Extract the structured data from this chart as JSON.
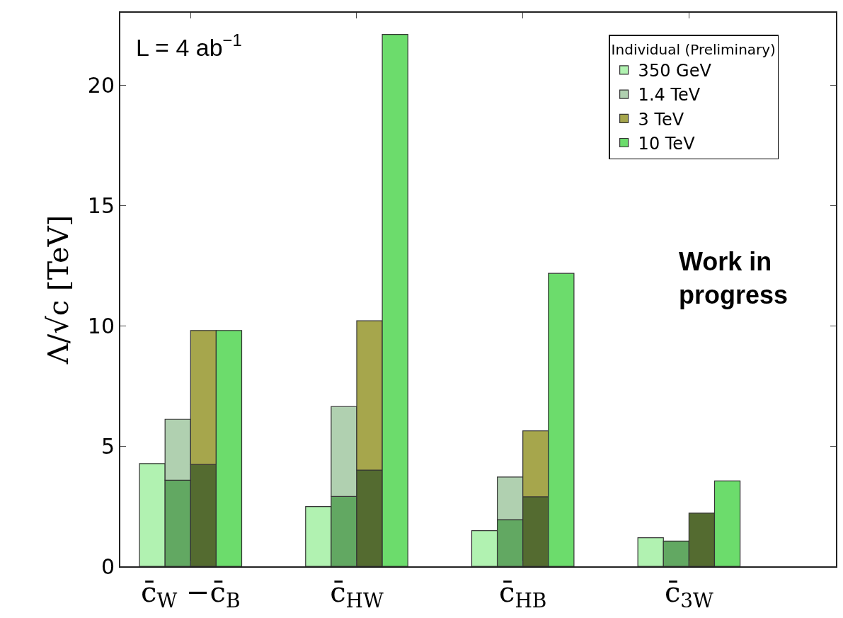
{
  "chart_data": {
    "type": "bar",
    "stacked": true,
    "ylabel": "Λ/√c [TeV]",
    "legend_title": "Individual (Preliminary)",
    "categories": [
      null,
      null,
      null,
      null,
      null,
      "c̄$_{W}$ −c̄$_{B}$",
      null,
      null,
      null,
      null,
      null,
      null,
      null,
      null,
      null,
      null,
      null,
      null,
      "c̄$_{HW}$",
      null,
      null,
      null,
      null,
      null,
      null,
      null,
      null,
      null,
      null,
      null,
      null,
      "c̄$_{HB}$",
      null,
      null,
      null,
      null,
      null,
      null,
      null,
      null,
      null,
      null,
      null,
      null,
      "c̄$_{3W}$",
      null,
      null,
      null,
      null,
      null,
      null,
      null,
      null,
      null,
      null,
      null
    ],
    "series": [
      {
        "name": "350 GeV",
        "color": "#b1f2b1",
        "values": [
          null,
          null,
          4.27,
          null,
          null,
          null,
          null,
          null,
          null,
          null,
          null,
          null,
          null,
          null,
          null,
          2.48,
          null,
          null,
          null,
          null,
          null,
          null,
          null,
          null,
          null,
          null,
          null,
          null,
          1.48,
          null,
          null,
          null,
          null,
          null,
          null,
          null,
          null,
          null,
          null,
          null,
          null,
          1.19,
          null,
          null,
          null,
          null,
          null,
          null,
          null,
          null,
          null,
          null,
          null,
          null,
          null,
          null
        ]
      },
      {
        "color": "#62a862",
        "values": [
          null,
          null,
          null,
          null,
          3.58,
          null,
          null,
          null,
          null,
          null,
          null,
          null,
          null,
          null,
          null,
          null,
          null,
          2.9,
          null,
          null,
          null,
          null,
          null,
          null,
          null,
          null,
          null,
          null,
          null,
          null,
          1.94,
          null,
          null,
          null,
          null,
          null,
          null,
          null,
          null,
          null,
          null,
          null,
          null,
          1.05,
          null,
          null,
          null,
          null,
          null,
          null,
          null,
          null,
          null,
          null,
          null,
          null
        ]
      },
      {
        "name": "1.4 TeV",
        "color": "#b0d0b0",
        "values": [
          null,
          null,
          null,
          null,
          2.53,
          null,
          null,
          null,
          null,
          null,
          null,
          null,
          null,
          null,
          null,
          null,
          null,
          3.74,
          null,
          null,
          null,
          null,
          null,
          null,
          null,
          null,
          null,
          null,
          null,
          null,
          1.77,
          null,
          null,
          null,
          null,
          null,
          null,
          null,
          null,
          null,
          null,
          null,
          null,
          null,
          null,
          null,
          null,
          null,
          null,
          null,
          null,
          null,
          null,
          null,
          null,
          null
        ]
      },
      {
        "color": "#546b30",
        "values": [
          null,
          null,
          null,
          null,
          null,
          null,
          4.23,
          null,
          null,
          null,
          null,
          null,
          null,
          null,
          null,
          null,
          null,
          null,
          null,
          4.0,
          null,
          null,
          null,
          null,
          null,
          null,
          null,
          null,
          null,
          null,
          null,
          null,
          2.89,
          null,
          null,
          null,
          null,
          null,
          null,
          null,
          null,
          null,
          null,
          null,
          null,
          2.21,
          null,
          null,
          null,
          null,
          null,
          null,
          null,
          null,
          null,
          null
        ]
      },
      {
        "name": "3 TeV",
        "color": "#a6a64c",
        "values": [
          null,
          null,
          null,
          null,
          null,
          null,
          5.57,
          null,
          null,
          null,
          null,
          null,
          null,
          null,
          null,
          null,
          null,
          null,
          null,
          6.2,
          null,
          null,
          null,
          null,
          null,
          null,
          null,
          null,
          null,
          null,
          null,
          null,
          2.74,
          null,
          null,
          null,
          null,
          null,
          null,
          null,
          null,
          null,
          null,
          null,
          null,
          null,
          null,
          null,
          null,
          null,
          null,
          null,
          null,
          null,
          null,
          null
        ]
      },
      {
        "name": "10 TeV",
        "color": "#6cdc6c",
        "values": [
          null,
          null,
          null,
          null,
          null,
          null,
          null,
          null,
          9.8,
          null,
          null,
          null,
          null,
          null,
          null,
          null,
          null,
          null,
          null,
          null,
          null,
          22.1,
          null,
          null,
          null,
          null,
          null,
          null,
          null,
          null,
          null,
          null,
          null,
          null,
          12.17,
          null,
          null,
          null,
          null,
          null,
          null,
          null,
          null,
          null,
          null,
          null,
          null,
          3.55,
          null,
          null,
          null,
          null,
          null,
          null,
          null,
          null
        ]
      }
    ],
    "ylim": [
      0,
      23
    ],
    "yticks": [
      0,
      5,
      10,
      15,
      20
    ],
    "legend": "top right",
    "annotations": [
      "L = 4 ab$^{−1}$",
      "Work in progress"
    ]
  }
}
